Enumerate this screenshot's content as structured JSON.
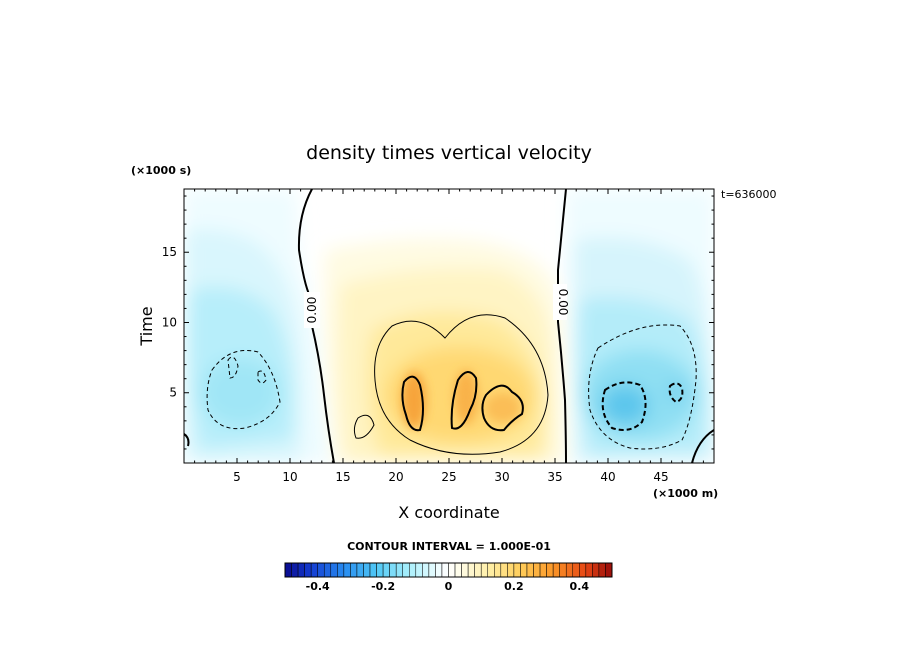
{
  "chart_data": {
    "type": "heatmap",
    "title": "density times vertical velocity",
    "xlabel": "X coordinate",
    "ylabel": "Time",
    "x_unit": "(×1000 m)",
    "y_unit": "(×1000 s)",
    "time_label": "t=636000",
    "xlim": [
      0,
      50
    ],
    "ylim": [
      0,
      19.5
    ],
    "x_ticks": [
      5,
      10,
      15,
      20,
      25,
      30,
      35,
      40,
      45
    ],
    "y_ticks": [
      5,
      10,
      15
    ],
    "contour_interval_text": "CONTOUR INTERVAL = 1.000E-01",
    "zero_contour_label": "0.00",
    "colorbar": {
      "vmin": -0.5,
      "vmax": 0.5,
      "ticks": [
        -0.4,
        -0.2,
        0,
        0.2,
        0.4
      ],
      "tick_labels": [
        "-0.4",
        "-0.2",
        "0",
        "0.2",
        "0.4"
      ]
    },
    "features": [
      {
        "x": 6.5,
        "y": 6,
        "value": -0.15
      },
      {
        "x": 22,
        "y": 5,
        "value": 0.3
      },
      {
        "x": 26.5,
        "y": 5,
        "value": 0.28
      },
      {
        "x": 31,
        "y": 4,
        "value": 0.25
      },
      {
        "x": 42,
        "y": 4,
        "value": -0.3
      },
      {
        "x": 46,
        "y": 5.5,
        "value": -0.25
      }
    ],
    "grid": false
  }
}
